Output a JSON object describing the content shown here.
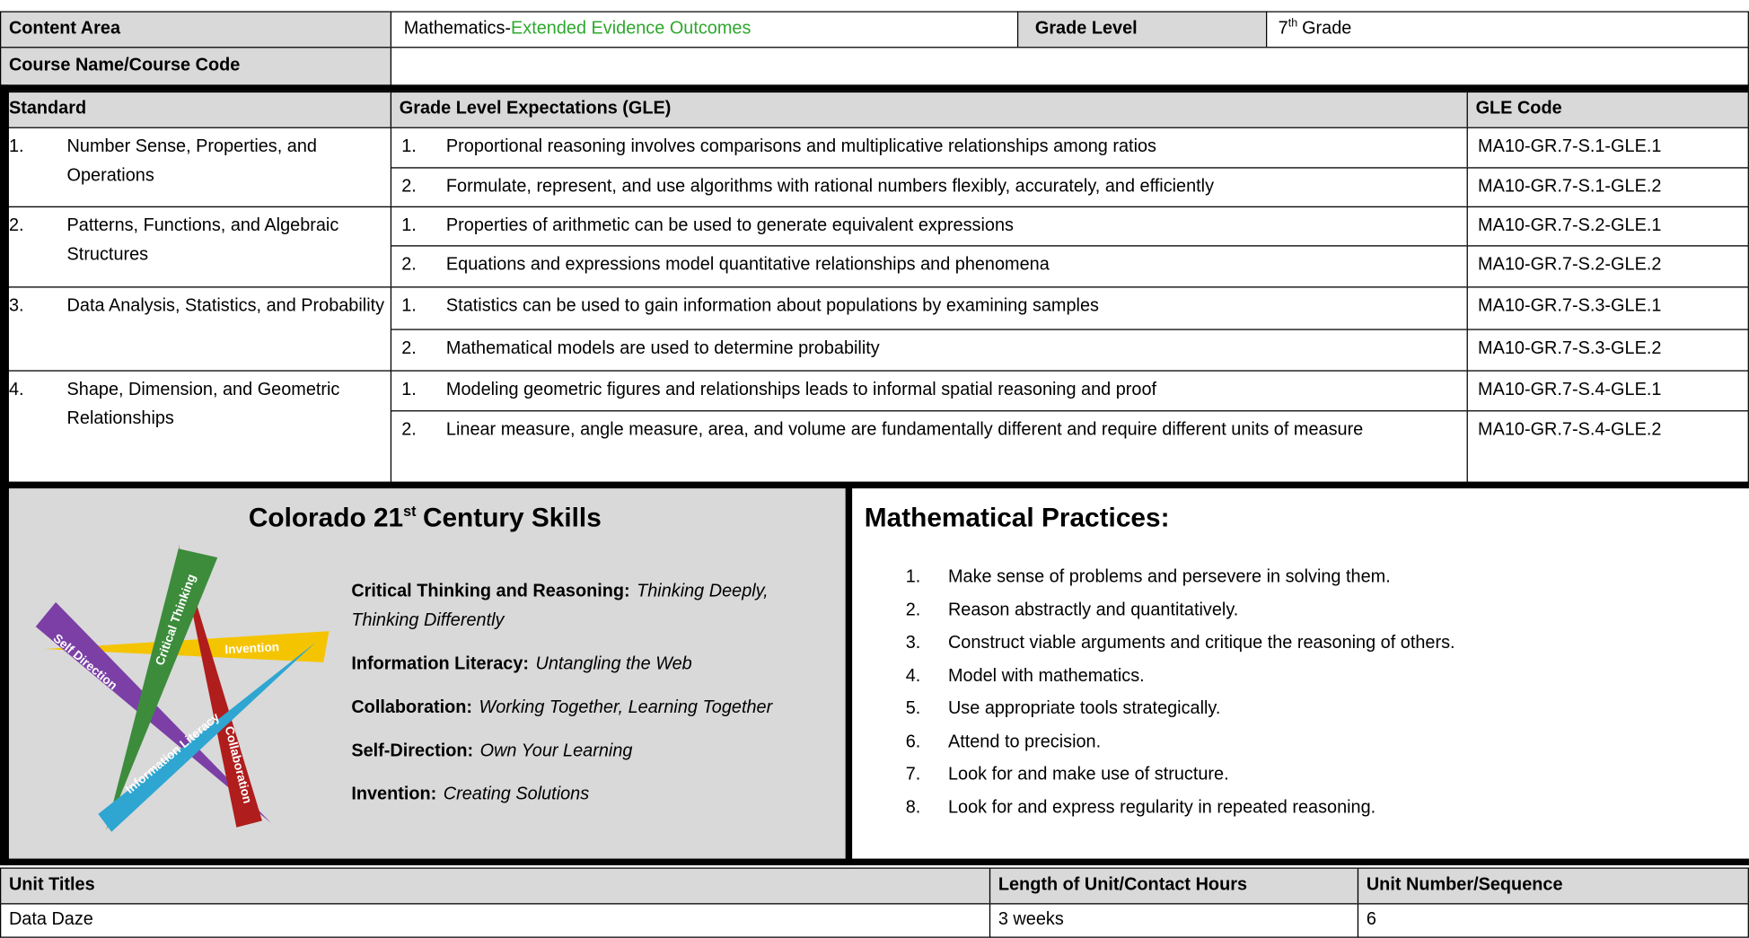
{
  "header": {
    "content_area_label": "Content Area",
    "content_area_prefix": "Mathematics-",
    "content_area_highlight": "Extended Evidence Outcomes",
    "grade_level_label": "Grade Level",
    "grade_level_number": "7",
    "grade_level_sup": "th",
    "grade_level_suffix": "Grade",
    "course_label": "Course Name/Course Code"
  },
  "standards": {
    "headers": [
      "Standard",
      "Grade Level Expectations (GLE)",
      "GLE Code"
    ],
    "groups": [
      {
        "number": "1.",
        "name": "Number Sense, Properties, and Operations",
        "gles": [
          {
            "number": "1.",
            "text": "Proportional reasoning involves comparisons and multiplicative relationships among ratios",
            "code": "MA10-GR.7-S.1-GLE.1"
          },
          {
            "number": "2.",
            "text": "Formulate, represent, and use algorithms with rational numbers flexibly, accurately, and efficiently",
            "code": "MA10-GR.7-S.1-GLE.2"
          }
        ]
      },
      {
        "number": "2.",
        "name": "Patterns, Functions, and Algebraic Structures",
        "gles": [
          {
            "number": "1.",
            "text": "Properties of arithmetic can be used to generate equivalent expressions",
            "code": "MA10-GR.7-S.2-GLE.1"
          },
          {
            "number": "2.",
            "text": "Equations and expressions model quantitative relationships and phenomena",
            "code": "MA10-GR.7-S.2-GLE.2"
          }
        ]
      },
      {
        "number": "3.",
        "name": "Data Analysis, Statistics, and Probability",
        "gles": [
          {
            "number": "1.",
            "text": "Statistics can be used to gain information about populations by examining samples",
            "code": "MA10-GR.7-S.3-GLE.1"
          },
          {
            "number": "2.",
            "text": "Mathematical models are used to determine probability",
            "code": "MA10-GR.7-S.3-GLE.2"
          }
        ]
      },
      {
        "number": "4.",
        "name": "Shape, Dimension, and Geometric Relationships",
        "gles": [
          {
            "number": "1.",
            "text": "Modeling geometric figures and relationships leads to informal spatial reasoning and proof",
            "code": "MA10-GR.7-S.4-GLE.1"
          },
          {
            "number": "2.",
            "text": "Linear measure, angle measure, area, and volume are fundamentally different and require different units of measure",
            "code": "MA10-GR.7-S.4-GLE.2"
          }
        ]
      }
    ]
  },
  "skills": {
    "title_main": "Colorado 21",
    "title_sup": "st",
    "title_rest": "Century Skills",
    "graphic_labels": [
      "Self Direction",
      "Critical Thinking",
      "Invention",
      "Information Literacy",
      "Collaboration"
    ],
    "items": [
      {
        "label": "Critical Thinking and Reasoning:",
        "description": "Thinking Deeply, Thinking Differently"
      },
      {
        "label": "Information Literacy:",
        "description": "Untangling the Web"
      },
      {
        "label": "Collaboration:",
        "description": "Working Together, Learning Together"
      },
      {
        "label": "Self-Direction:",
        "description": "Own Your Learning"
      },
      {
        "label": "Invention:",
        "description": "Creating Solutions"
      }
    ]
  },
  "practices": {
    "title": "Mathematical Practices:",
    "items": [
      {
        "number": "1.",
        "text": "Make sense of problems and persevere in solving them."
      },
      {
        "number": "2.",
        "text": "Reason abstractly and quantitatively."
      },
      {
        "number": "3.",
        "text": "Construct viable arguments and critique the reasoning of others."
      },
      {
        "number": "4.",
        "text": "Model with mathematics."
      },
      {
        "number": "5.",
        "text": "Use appropriate tools strategically."
      },
      {
        "number": "6.",
        "text": "Attend to precision."
      },
      {
        "number": "7.",
        "text": "Look for and make use of structure."
      },
      {
        "number": "8.",
        "text": "Look for and express regularity in repeated reasoning."
      }
    ]
  },
  "units": {
    "headers": [
      "Unit Titles",
      "Length of Unit/Contact Hours",
      "Unit Number/Sequence"
    ],
    "rows": [
      [
        "Data Daze",
        "3 weeks",
        "6"
      ]
    ]
  }
}
